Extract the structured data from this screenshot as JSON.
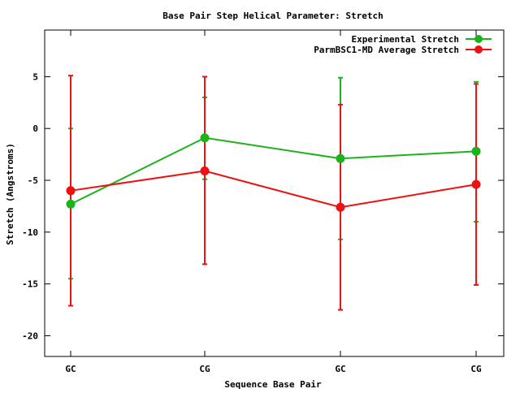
{
  "chart_data": {
    "type": "line",
    "title": "Base Pair Step Helical Parameter: Stretch",
    "xlabel": "Sequence Base Pair",
    "ylabel": "Stretch (Angstroms)",
    "categories": [
      "GC",
      "CG",
      "GC",
      "CG"
    ],
    "ylim": [
      -22,
      9.5
    ],
    "yticks": [
      5,
      0,
      -5,
      -10,
      -15,
      -20
    ],
    "ytick_labels": [
      "5",
      "0",
      "-5",
      "-10",
      "-15",
      "-20"
    ],
    "grid": false,
    "legend_position": "top-right",
    "series": [
      {
        "name": "Experimental Stretch",
        "color": "#1bb31b",
        "values": [
          -7.3,
          -0.9,
          -2.9,
          -2.2
        ],
        "error_low": [
          -14.5,
          -4.9,
          -10.7,
          -9.0
        ],
        "error_high": [
          0.0,
          3.0,
          4.9,
          4.5
        ]
      },
      {
        "name": "ParmBSC1-MD Average Stretch",
        "color": "#ee1111",
        "values": [
          -6.0,
          -4.1,
          -7.6,
          -5.4
        ],
        "error_low": [
          -17.1,
          -13.1,
          -17.5,
          -15.1
        ],
        "error_high": [
          5.1,
          5.0,
          2.3,
          4.3
        ]
      }
    ]
  }
}
